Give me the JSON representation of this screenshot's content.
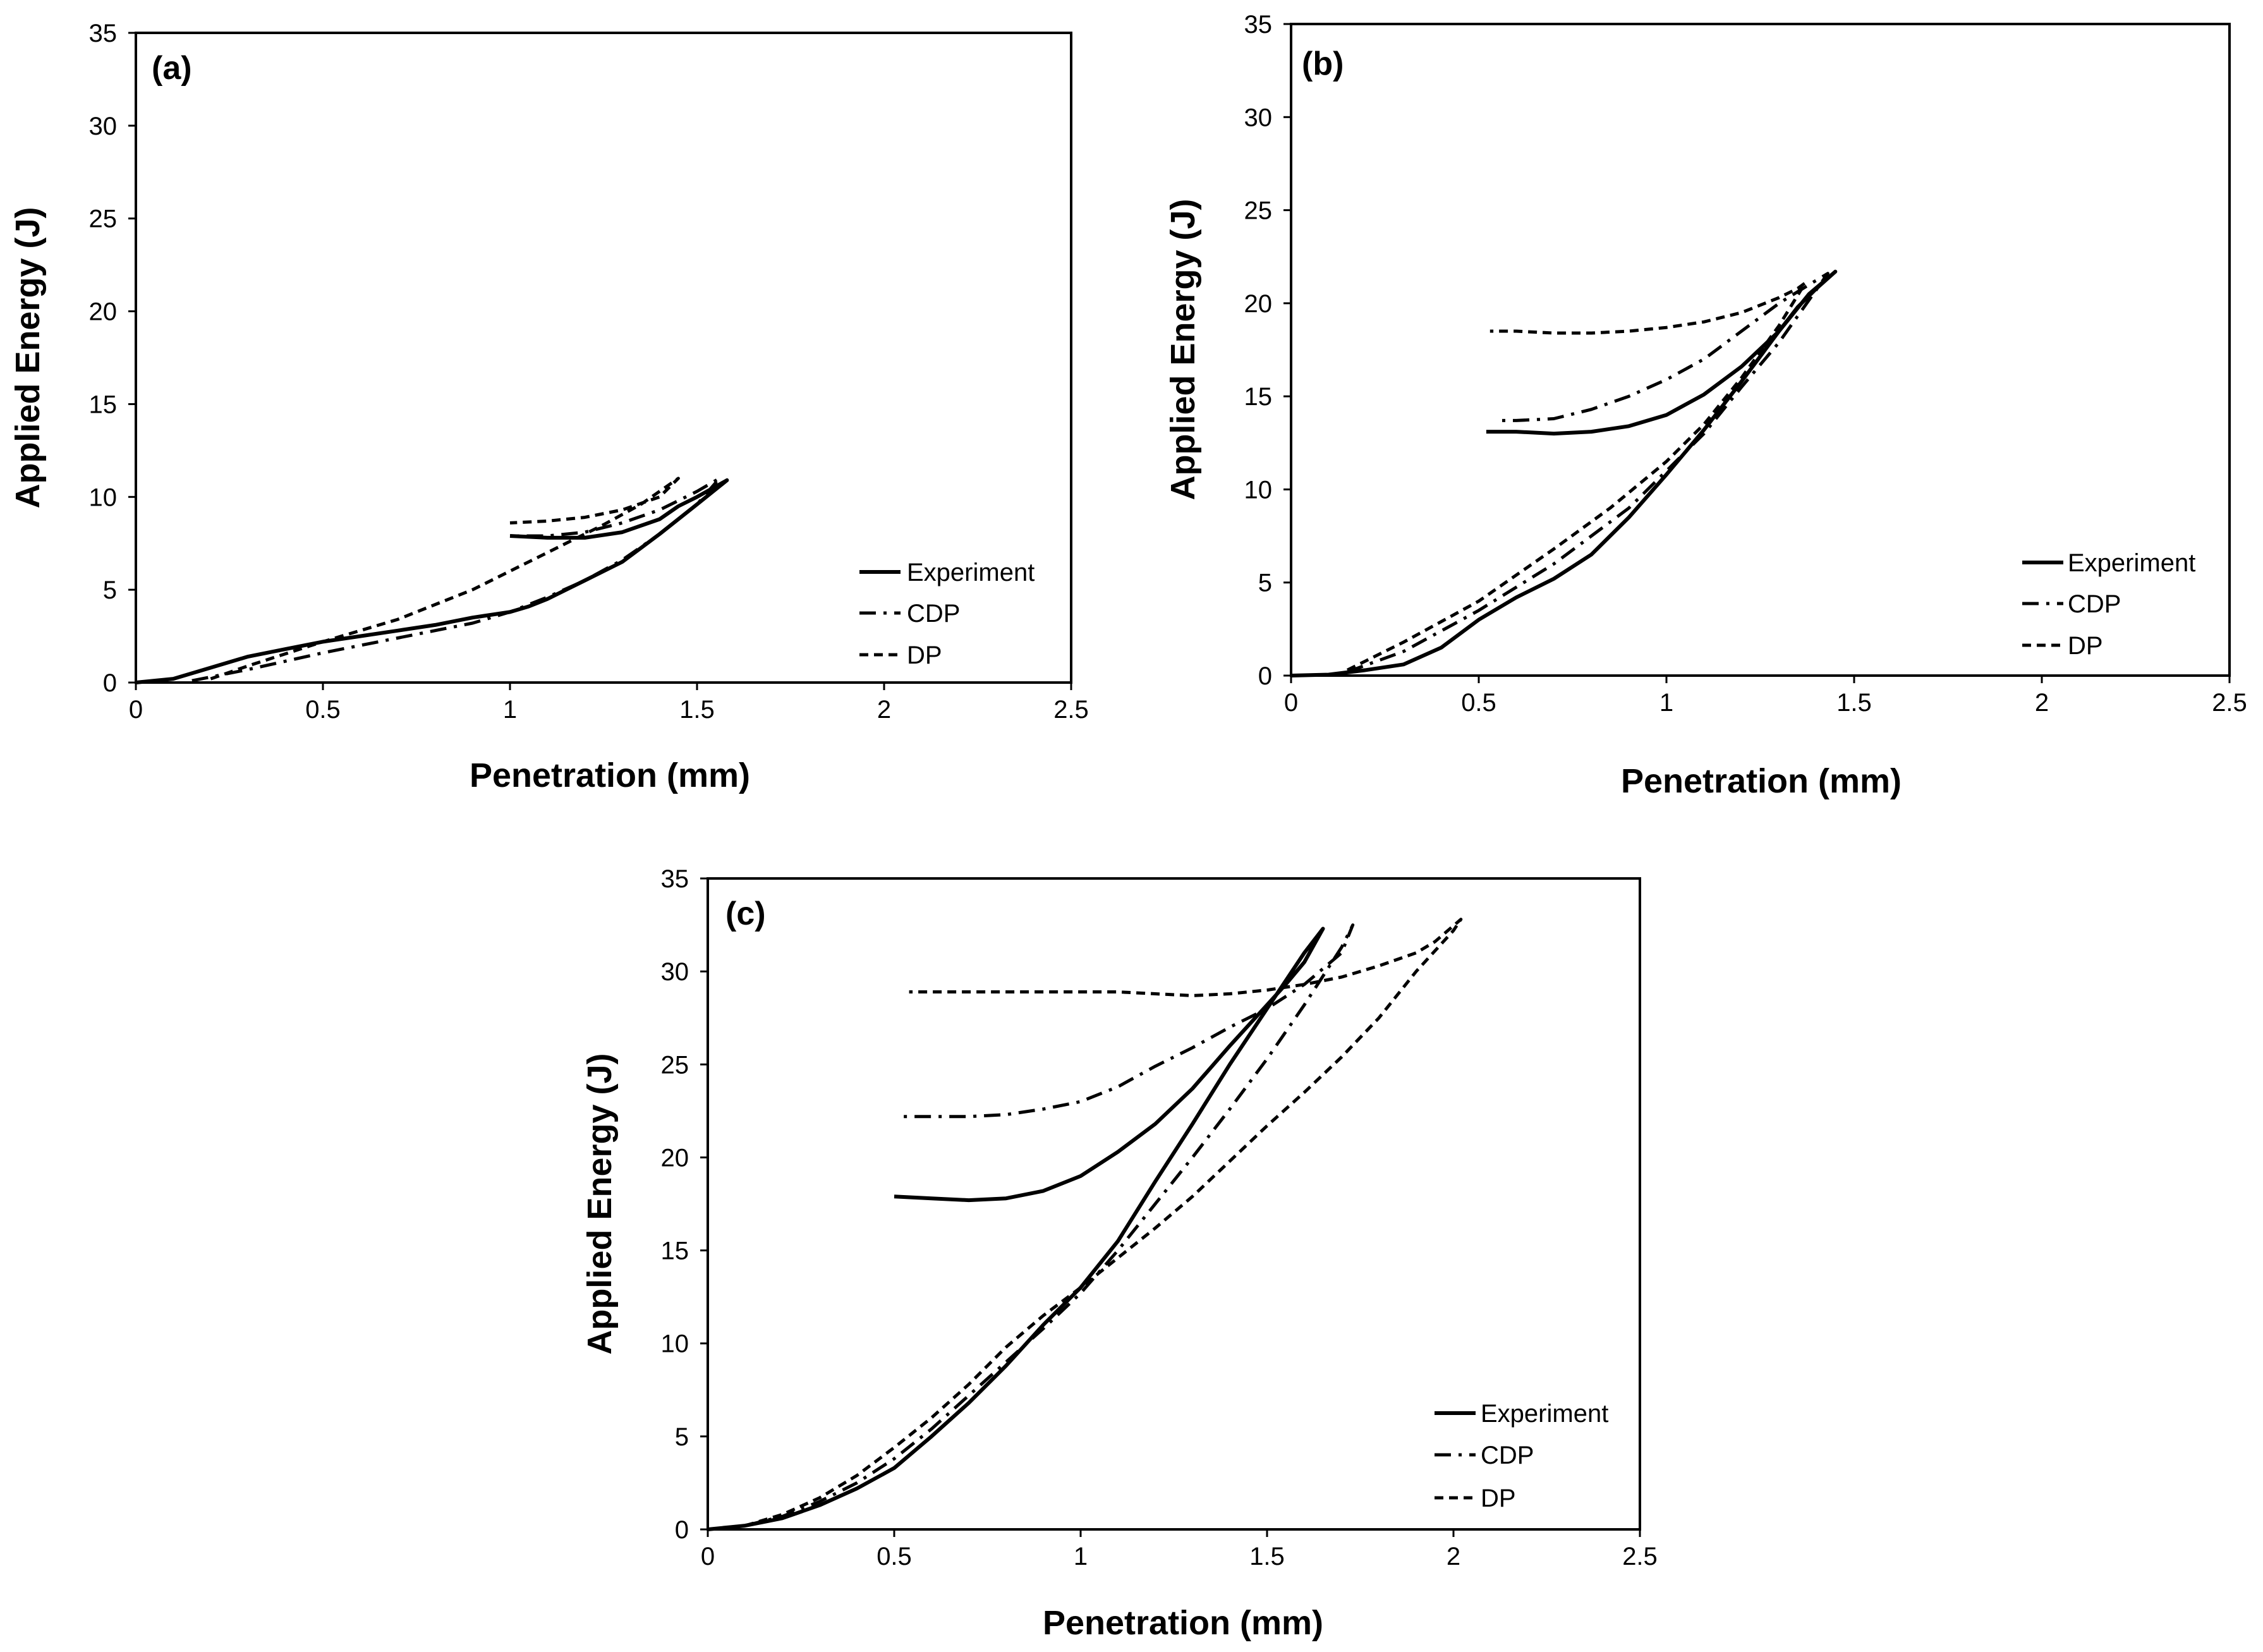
{
  "chart_data": [
    {
      "type": "line",
      "panel_label": "(a)",
      "xlabel": "Penetration (mm)",
      "ylabel": "Applied Energy (J)",
      "xlim": [
        0,
        2.5
      ],
      "ylim": [
        0,
        35
      ],
      "xticks": [
        "0",
        "0.5",
        "1",
        "1.5",
        "2",
        "2.5"
      ],
      "yticks": [
        "0",
        "5",
        "10",
        "15",
        "20",
        "25",
        "30",
        "35"
      ],
      "legend": [
        "Experiment",
        "CDP",
        "DP"
      ],
      "series": [
        {
          "name": "Experiment",
          "style": "solid",
          "x": [
            0,
            0.1,
            0.2,
            0.3,
            0.4,
            0.5,
            0.6,
            0.7,
            0.8,
            0.9,
            1.0,
            1.05,
            1.1,
            1.2,
            1.3,
            1.4,
            1.5,
            1.58,
            1.5,
            1.45,
            1.4,
            1.3,
            1.2,
            1.1,
            1.0
          ],
          "y": [
            0,
            0.2,
            0.8,
            1.4,
            1.8,
            2.2,
            2.5,
            2.8,
            3.1,
            3.5,
            3.8,
            4.1,
            4.5,
            5.5,
            6.5,
            8.0,
            9.6,
            10.9,
            10.0,
            9.5,
            8.8,
            8.1,
            7.8,
            7.8,
            7.9
          ]
        },
        {
          "name": "CDP",
          "style": "dashdot",
          "x": [
            0.15,
            0.3,
            0.5,
            0.7,
            0.9,
            1.0,
            1.1,
            1.2,
            1.3,
            1.4,
            1.5,
            1.56,
            1.5,
            1.45,
            1.4,
            1.3,
            1.2,
            1.1,
            1.0
          ],
          "y": [
            0.1,
            0.7,
            1.6,
            2.4,
            3.2,
            3.8,
            4.6,
            5.5,
            6.6,
            8.0,
            9.6,
            11.0,
            10.3,
            9.8,
            9.3,
            8.6,
            8.1,
            7.9,
            7.9
          ]
        },
        {
          "name": "DP",
          "style": "dashed",
          "x": [
            0.2,
            0.3,
            0.5,
            0.7,
            0.9,
            1.1,
            1.25,
            1.35,
            1.45,
            1.4,
            1.3,
            1.2,
            1.1,
            1.0
          ],
          "y": [
            0.2,
            0.9,
            2.2,
            3.4,
            5.0,
            7.0,
            8.5,
            9.6,
            11.0,
            10.0,
            9.3,
            8.9,
            8.7,
            8.6
          ]
        }
      ]
    },
    {
      "type": "line",
      "panel_label": "(b)",
      "xlabel": "Penetration (mm)",
      "ylabel": "Applied Energy (J)",
      "xlim": [
        0,
        2.5
      ],
      "ylim": [
        0,
        35
      ],
      "xticks": [
        "0",
        "0.5",
        "1",
        "1.5",
        "2",
        "2.5"
      ],
      "yticks": [
        "0",
        "5",
        "10",
        "15",
        "20",
        "25",
        "30",
        "35"
      ],
      "legend": [
        "Experiment",
        "CDP",
        "DP"
      ],
      "series": [
        {
          "name": "Experiment",
          "style": "solid",
          "x": [
            0,
            0.1,
            0.2,
            0.3,
            0.4,
            0.5,
            0.6,
            0.7,
            0.8,
            0.9,
            1.0,
            1.1,
            1.2,
            1.3,
            1.38,
            1.45,
            1.4,
            1.35,
            1.3,
            1.2,
            1.1,
            1.0,
            0.9,
            0.8,
            0.7,
            0.6,
            0.52
          ],
          "y": [
            0,
            0.05,
            0.3,
            0.6,
            1.5,
            3.0,
            4.2,
            5.2,
            6.5,
            8.5,
            10.8,
            13.2,
            15.8,
            18.5,
            20.5,
            21.7,
            20.8,
            19.8,
            18.5,
            16.6,
            15.1,
            14.0,
            13.4,
            13.1,
            13.0,
            13.1,
            13.1
          ]
        },
        {
          "name": "CDP",
          "style": "dashdot",
          "x": [
            0.15,
            0.3,
            0.5,
            0.7,
            0.9,
            1.0,
            1.1,
            1.2,
            1.3,
            1.43,
            1.38,
            1.3,
            1.2,
            1.1,
            1.0,
            0.9,
            0.8,
            0.7,
            0.6,
            0.55
          ],
          "y": [
            0.2,
            1.3,
            3.5,
            6.0,
            9.0,
            11.0,
            13.0,
            15.5,
            17.9,
            21.6,
            21.0,
            20.0,
            18.5,
            17.0,
            15.9,
            15.0,
            14.3,
            13.8,
            13.7,
            13.7
          ]
        },
        {
          "name": "DP",
          "style": "dashed",
          "x": [
            0.15,
            0.3,
            0.5,
            0.7,
            0.85,
            1.0,
            1.1,
            1.2,
            1.3,
            1.37,
            1.35,
            1.3,
            1.2,
            1.1,
            1.0,
            0.9,
            0.8,
            0.7,
            0.6,
            0.53
          ],
          "y": [
            0.3,
            1.8,
            4.0,
            6.8,
            9.0,
            11.5,
            13.5,
            16.0,
            18.8,
            21.1,
            20.8,
            20.3,
            19.5,
            19.0,
            18.7,
            18.5,
            18.4,
            18.4,
            18.5,
            18.5
          ]
        }
      ]
    },
    {
      "type": "line",
      "panel_label": "(c)",
      "xlabel": "Penetration (mm)",
      "ylabel": "Applied Energy (J)",
      "xlim": [
        0,
        2.5
      ],
      "ylim": [
        0,
        35
      ],
      "xticks": [
        "0",
        "0.5",
        "1",
        "1.5",
        "2",
        "2.5"
      ],
      "yticks": [
        "0",
        "5",
        "10",
        "15",
        "20",
        "25",
        "30",
        "35"
      ],
      "legend": [
        "Experiment",
        "CDP",
        "DP"
      ],
      "series": [
        {
          "name": "Experiment",
          "style": "solid",
          "x": [
            0,
            0.1,
            0.2,
            0.3,
            0.4,
            0.5,
            0.6,
            0.7,
            0.8,
            0.9,
            1.0,
            1.1,
            1.2,
            1.3,
            1.4,
            1.5,
            1.6,
            1.65,
            1.6,
            1.55,
            1.5,
            1.4,
            1.3,
            1.2,
            1.1,
            1.0,
            0.9,
            0.8,
            0.7,
            0.6,
            0.5
          ],
          "y": [
            0,
            0.2,
            0.6,
            1.3,
            2.2,
            3.3,
            5.0,
            6.8,
            8.8,
            11.0,
            13.0,
            15.5,
            18.7,
            21.8,
            25.0,
            28.0,
            31.0,
            32.3,
            30.5,
            29.3,
            28.2,
            26.0,
            23.7,
            21.8,
            20.3,
            19.0,
            18.2,
            17.8,
            17.7,
            17.8,
            17.9
          ]
        },
        {
          "name": "CDP",
          "style": "dashdot",
          "x": [
            0.1,
            0.2,
            0.3,
            0.4,
            0.5,
            0.6,
            0.7,
            0.8,
            0.9,
            1.0,
            1.1,
            1.2,
            1.3,
            1.4,
            1.5,
            1.6,
            1.7,
            1.73,
            1.7,
            1.6,
            1.5,
            1.4,
            1.3,
            1.2,
            1.1,
            1.0,
            0.9,
            0.8,
            0.7,
            0.6,
            0.52
          ],
          "y": [
            0.2,
            0.7,
            1.5,
            2.5,
            3.8,
            5.4,
            7.2,
            9.0,
            10.8,
            12.7,
            15.0,
            17.5,
            20.0,
            22.6,
            25.3,
            28.2,
            31.3,
            32.5,
            31.0,
            29.3,
            28.0,
            27.0,
            25.9,
            24.9,
            23.8,
            23.0,
            22.6,
            22.3,
            22.2,
            22.2,
            22.2
          ]
        },
        {
          "name": "DP",
          "style": "dashed",
          "x": [
            0.1,
            0.2,
            0.3,
            0.4,
            0.5,
            0.6,
            0.7,
            0.8,
            0.9,
            1.0,
            1.1,
            1.2,
            1.3,
            1.4,
            1.5,
            1.6,
            1.7,
            1.8,
            1.9,
            2.0,
            2.02,
            1.95,
            1.9,
            1.8,
            1.7,
            1.6,
            1.5,
            1.4,
            1.3,
            1.2,
            1.1,
            1.0,
            0.9,
            0.8,
            0.7,
            0.6,
            0.54
          ],
          "y": [
            0.2,
            0.8,
            1.7,
            2.9,
            4.4,
            6.0,
            7.8,
            9.8,
            11.5,
            13.0,
            14.6,
            16.2,
            17.9,
            19.8,
            21.7,
            23.5,
            25.4,
            27.5,
            30.0,
            32.2,
            32.8,
            31.6,
            31.0,
            30.3,
            29.7,
            29.3,
            29.0,
            28.8,
            28.7,
            28.8,
            28.9,
            28.9,
            28.9,
            28.9,
            28.9,
            28.9,
            28.9
          ]
        }
      ]
    }
  ]
}
